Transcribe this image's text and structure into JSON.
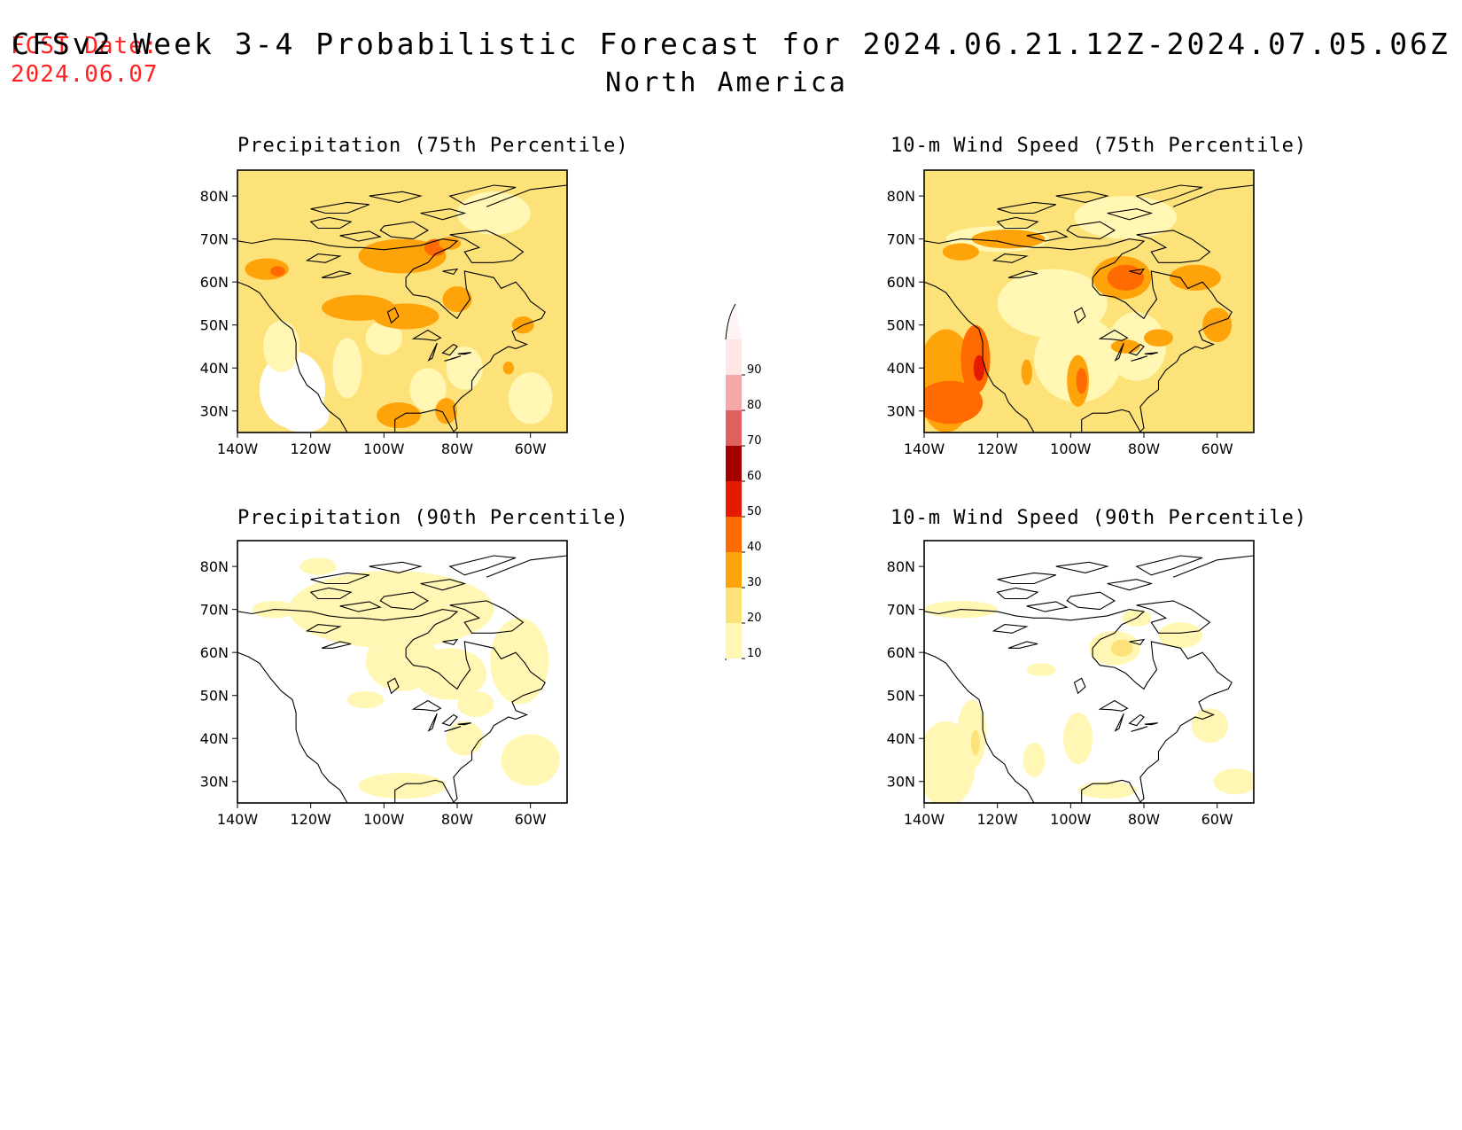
{
  "header": {
    "fcst_label": "FCST Date:",
    "fcst_date": "2024.06.07",
    "title": "CFSv2 Week 3-4 Probabilistic Forecast for 2024.06.21.12Z-2024.07.05.06Z",
    "region": "North America"
  },
  "axes": {
    "lat_labels": [
      "80N",
      "70N",
      "60N",
      "50N",
      "40N",
      "30N"
    ],
    "lon_labels": [
      "140W",
      "120W",
      "100W",
      "80W",
      "60W"
    ]
  },
  "panels": [
    {
      "title": "Precipitation (75th Percentile)",
      "variable": "precipitation",
      "percentile": 75
    },
    {
      "title": "10-m Wind Speed (75th Percentile)",
      "variable": "wind",
      "percentile": 75
    },
    {
      "title": "Precipitation (90th Percentile)",
      "variable": "precipitation",
      "percentile": 90
    },
    {
      "title": "10-m Wind Speed (90th Percentile)",
      "variable": "wind",
      "percentile": 90
    }
  ],
  "colorbar": {
    "labels": [
      "10",
      "20",
      "30",
      "40",
      "50",
      "60",
      "70",
      "80",
      "90"
    ],
    "colors": [
      "#fff7b3",
      "#fde27a",
      "#ffa30a",
      "#ff6b00",
      "#e61a00",
      "#a30000",
      "#e06060",
      "#f4a8a8",
      "#ffe6e6"
    ]
  }
}
